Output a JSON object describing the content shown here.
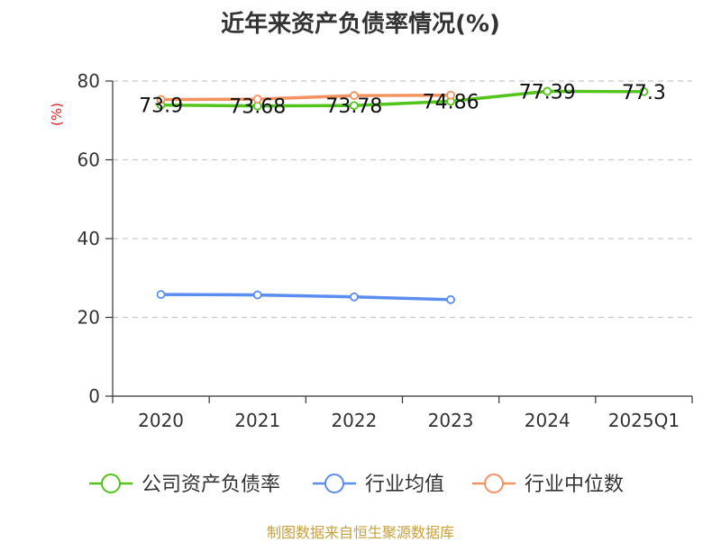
{
  "page": {
    "title": "近年来资产负债率情况(%)",
    "source": "制图数据来自恒生聚源数据库"
  },
  "chart_data": {
    "type": "line",
    "title": "近年来资产负债率情况(%)",
    "ylabel": "(%)",
    "categories": [
      "2020",
      "2021",
      "2022",
      "2023",
      "2024",
      "2025Q1"
    ],
    "ylim": [
      0,
      80
    ],
    "yticks": [
      0,
      20,
      40,
      60,
      80
    ],
    "grid": true,
    "legend_position": "bottom",
    "series": [
      {
        "name": "公司资产负债率",
        "color": "#52c41a",
        "values": [
          73.9,
          73.68,
          73.78,
          74.86,
          77.39,
          77.3
        ],
        "labels": [
          "73.9",
          "73.68",
          "73.78",
          "74.86",
          "77.39",
          "77.3"
        ]
      },
      {
        "name": "行业均值",
        "color": "#5b8def",
        "values": [
          25.8,
          25.7,
          25.2,
          24.5,
          null,
          null
        ]
      },
      {
        "name": "行业中位数",
        "color": "#f4925f",
        "values": [
          75.3,
          75.4,
          76.3,
          76.4,
          null,
          null
        ]
      }
    ]
  }
}
